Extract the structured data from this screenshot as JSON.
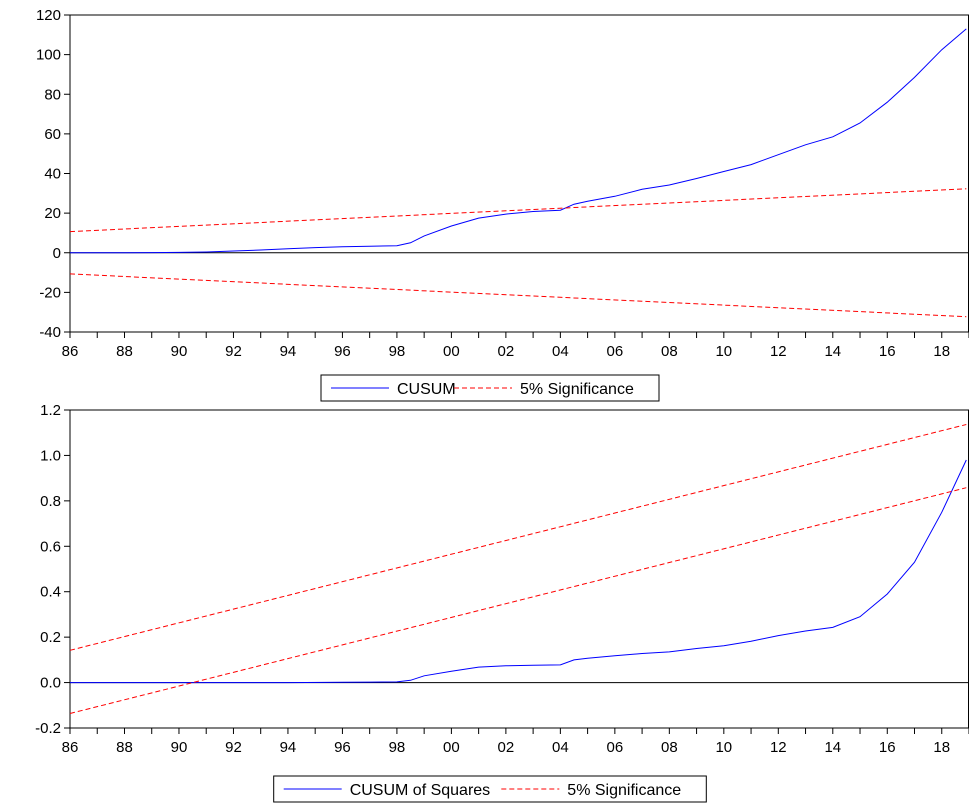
{
  "chart_data": [
    {
      "type": "line",
      "x_tick_labels": [
        "86",
        "88",
        "90",
        "92",
        "94",
        "96",
        "98",
        "00",
        "02",
        "04",
        "06",
        "08",
        "10",
        "12",
        "14",
        "16",
        "18"
      ],
      "xlim": [
        1986,
        2019
      ],
      "ylim": [
        -40,
        120
      ],
      "y_ticks": [
        -40,
        -20,
        0,
        20,
        40,
        60,
        80,
        100,
        120
      ],
      "zero_line": true,
      "legend_position": "bottom-center",
      "series": [
        {
          "name": "CUSUM",
          "color": "#0000ff",
          "style": "solid",
          "x": [
            1986,
            1987,
            1988,
            1989,
            1990,
            1991,
            1992,
            1993,
            1994,
            1995,
            1996,
            1997,
            1998,
            1998.5,
            1999,
            2000,
            2001,
            2002,
            2003,
            2004,
            2004.5,
            2005,
            2006,
            2007,
            2008,
            2009,
            2010,
            2011,
            2012,
            2013,
            2014,
            2015,
            2016,
            2017,
            2018,
            2018.9
          ],
          "y": [
            0,
            0,
            0,
            0.1,
            0.2,
            0.4,
            0.9,
            1.4,
            2.0,
            2.6,
            3.0,
            3.3,
            3.5,
            5,
            8.5,
            13.5,
            17.5,
            19.5,
            20.8,
            21.5,
            24.5,
            26,
            28.5,
            32,
            34.2,
            37.5,
            41,
            44.5,
            49.5,
            54.5,
            58.5,
            65.5,
            76,
            88.5,
            102.5,
            113
          ]
        },
        {
          "name": "5% Significance",
          "color": "#ff0000",
          "style": "dashed",
          "x": [
            1986,
            2018.9
          ],
          "y": [
            10.7,
            32.3
          ]
        },
        {
          "name": "5% Significance lower",
          "legend": false,
          "color": "#ff0000",
          "style": "dashed",
          "x": [
            1986,
            2018.9
          ],
          "y": [
            -10.7,
            -32.3
          ]
        }
      ],
      "legend": [
        {
          "label": "CUSUM",
          "color": "#0000ff",
          "style": "solid"
        },
        {
          "label": "5% Significance",
          "color": "#ff0000",
          "style": "dashed"
        }
      ]
    },
    {
      "type": "line",
      "x_tick_labels": [
        "86",
        "88",
        "90",
        "92",
        "94",
        "96",
        "98",
        "00",
        "02",
        "04",
        "06",
        "08",
        "10",
        "12",
        "14",
        "16",
        "18"
      ],
      "xlim": [
        1986,
        2019
      ],
      "ylim": [
        -0.2,
        1.2
      ],
      "y_ticks": [
        -0.2,
        0.0,
        0.2,
        0.4,
        0.6,
        0.8,
        1.0,
        1.2
      ],
      "y_tick_labels": [
        "-0.2",
        "0.0",
        "0.2",
        "0.4",
        "0.6",
        "0.8",
        "1.0",
        "1.2"
      ],
      "zero_line": true,
      "legend_position": "bottom-center",
      "series": [
        {
          "name": "CUSUM of Squares",
          "color": "#0000ff",
          "style": "solid",
          "x": [
            1986,
            1988,
            1990,
            1992,
            1994,
            1996,
            1997,
            1998,
            1998.5,
            1999,
            2000,
            2001,
            2002,
            2003,
            2004,
            2004.5,
            2005,
            2006,
            2007,
            2008,
            2009,
            2010,
            2011,
            2012,
            2013,
            2014,
            2015,
            2016,
            2017,
            2018,
            2018.9
          ],
          "y": [
            0,
            0,
            0,
            0,
            0,
            0.001,
            0.002,
            0.003,
            0.01,
            0.03,
            0.05,
            0.068,
            0.074,
            0.076,
            0.078,
            0.1,
            0.107,
            0.118,
            0.128,
            0.135,
            0.15,
            0.162,
            0.182,
            0.207,
            0.227,
            0.243,
            0.29,
            0.39,
            0.53,
            0.75,
            0.98
          ]
        },
        {
          "name": "5% Significance",
          "color": "#ff0000",
          "style": "dashed",
          "x": [
            1986,
            2018.9
          ],
          "y": [
            0.142,
            1.136
          ]
        },
        {
          "name": "5% Significance lower",
          "legend": false,
          "color": "#ff0000",
          "style": "dashed",
          "x": [
            1986,
            2018.9
          ],
          "y": [
            -0.136,
            0.858
          ]
        }
      ],
      "legend": [
        {
          "label": "CUSUM of Squares",
          "color": "#0000ff",
          "style": "solid"
        },
        {
          "label": "5% Significance",
          "color": "#ff0000",
          "style": "dashed"
        }
      ]
    }
  ]
}
